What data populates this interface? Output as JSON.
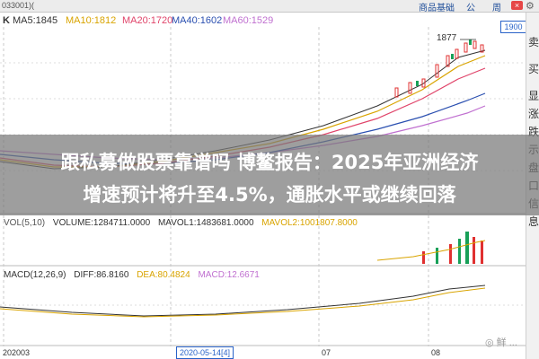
{
  "toolbar": {
    "code": "033001)(",
    "links": [
      "商品基础",
      "公",
      "周"
    ],
    "close": "×",
    "gear": "⚙"
  },
  "main_chart": {
    "k_label": "K",
    "ma_values": [
      {
        "label": "MA5:1845",
        "color": "#333333"
      },
      {
        "label": "MA10:1812",
        "color": "#d9a400"
      },
      {
        "label": "MA20:1720",
        "color": "#e0446a"
      },
      {
        "label": "MA40:1602",
        "color": "#2a4fb0"
      },
      {
        "label": "MA60:1529",
        "color": "#c070d0"
      }
    ],
    "high_marker": "1877",
    "price_badge": "1900"
  },
  "right_panel": {
    "chars": [
      "卖",
      "买",
      "显",
      "涨",
      "跌",
      "示",
      "盘",
      "口",
      "信",
      "息"
    ]
  },
  "headline": {
    "line1": "跟私募做股票靠谱吗 博鳌报告：2025年亚洲经济",
    "line2": "增速预计将升至4.5%，通胀水平或继续回落"
  },
  "vol_panel": {
    "labels": [
      {
        "text": "VOL(5,10)",
        "color": "#555555"
      },
      {
        "text": "VOLUME:1284711.0000",
        "color": "#333333"
      },
      {
        "text": "MAVOL1:1483681.0000",
        "color": "#333333"
      },
      {
        "text": "MAVOL2:1001807.8000",
        "color": "#d9a400"
      }
    ]
  },
  "macd_panel": {
    "labels": [
      {
        "text": "MACD(12,26,9)",
        "color": "#333333"
      },
      {
        "text": "DIFF:86.8160",
        "color": "#333333"
      },
      {
        "text": "DEA:80.4824",
        "color": "#d9a400"
      },
      {
        "text": "MACD:12.6671",
        "color": "#c070d0"
      }
    ]
  },
  "date_axis": {
    "ticks": [
      "202003",
      "07",
      "08"
    ],
    "cursor": "2020-05-14[4]"
  },
  "watermark": "◎ 鲜 ..."
}
